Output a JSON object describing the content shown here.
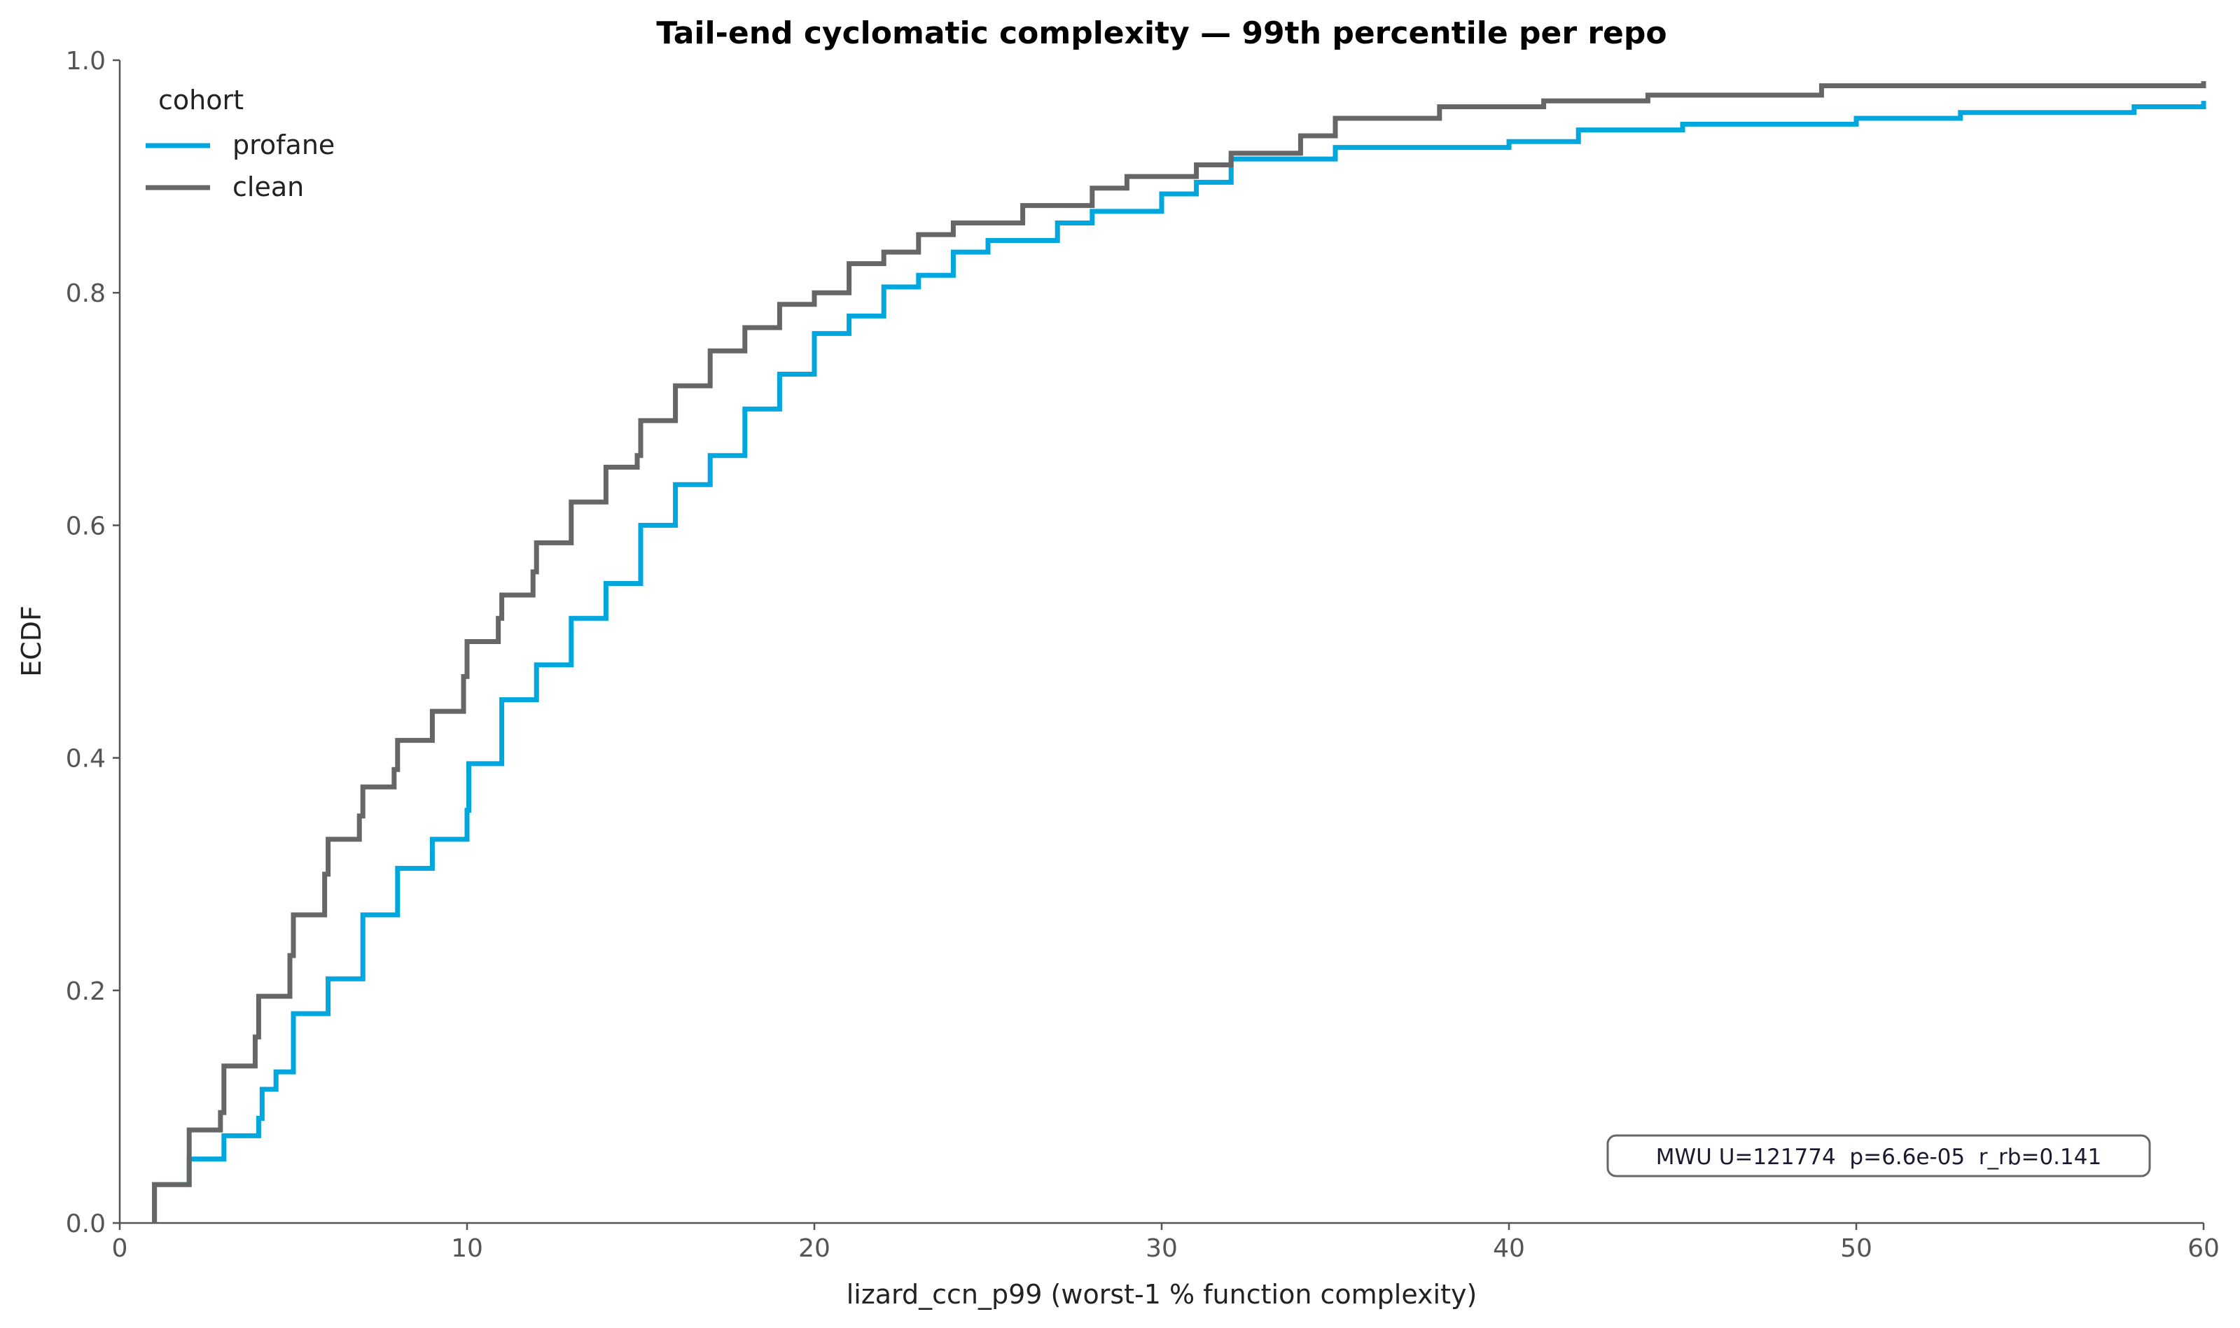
{
  "chart_data": {
    "type": "line",
    "step": "post",
    "title": "Tail-end cyclomatic complexity — 99th percentile per repo",
    "xlabel": "lizard_ccn_p99 (worst-1 % function complexity)",
    "ylabel": "ECDF",
    "xlim": [
      0,
      60
    ],
    "ylim": [
      0,
      1.0
    ],
    "xticks": [
      "0",
      "10",
      "20",
      "30",
      "40",
      "50",
      "60"
    ],
    "yticks": [
      "0.0",
      "0.2",
      "0.4",
      "0.6",
      "0.8",
      "1.0"
    ],
    "grid": false,
    "legend": {
      "title": "cohort",
      "placement": "top-left"
    },
    "annotation": "MWU U=121774  p=6.6e-05  r_rb=0.141",
    "series": [
      {
        "name": "profane",
        "color": "#00a6de",
        "x": [
          1,
          2,
          3,
          4,
          4.1,
          4.5,
          5,
          6,
          7,
          8,
          9,
          10,
          10.05,
          11,
          12,
          13,
          14,
          15,
          16,
          17,
          18,
          19,
          20,
          21,
          22,
          23,
          24,
          25,
          27,
          28,
          30,
          31,
          32,
          35,
          40,
          42,
          45,
          50,
          53,
          58,
          60
        ],
        "y": [
          0.033,
          0.055,
          0.075,
          0.09,
          0.115,
          0.13,
          0.18,
          0.21,
          0.265,
          0.305,
          0.33,
          0.355,
          0.395,
          0.45,
          0.48,
          0.52,
          0.55,
          0.6,
          0.635,
          0.66,
          0.7,
          0.73,
          0.765,
          0.78,
          0.805,
          0.815,
          0.835,
          0.845,
          0.86,
          0.87,
          0.885,
          0.895,
          0.915,
          0.925,
          0.93,
          0.94,
          0.945,
          0.95,
          0.955,
          0.96,
          0.965
        ]
      },
      {
        "name": "clean",
        "color": "#666666",
        "x": [
          1,
          2,
          2.9,
          3,
          3.9,
          4,
          4.9,
          5,
          5.9,
          6,
          6.9,
          7,
          7.9,
          8,
          9,
          9.9,
          10,
          10.9,
          11,
          11.9,
          12,
          13,
          14,
          14.9,
          15,
          16,
          17,
          18,
          19,
          20,
          21,
          22,
          23,
          24,
          26,
          28,
          29,
          31,
          32,
          34,
          35,
          38,
          41,
          44,
          49,
          60
        ],
        "y": [
          0.033,
          0.08,
          0.095,
          0.135,
          0.16,
          0.195,
          0.23,
          0.265,
          0.3,
          0.33,
          0.35,
          0.375,
          0.39,
          0.415,
          0.44,
          0.47,
          0.5,
          0.52,
          0.54,
          0.56,
          0.585,
          0.62,
          0.65,
          0.66,
          0.69,
          0.72,
          0.75,
          0.77,
          0.79,
          0.8,
          0.825,
          0.835,
          0.85,
          0.86,
          0.875,
          0.89,
          0.9,
          0.91,
          0.92,
          0.935,
          0.95,
          0.96,
          0.965,
          0.97,
          0.978,
          0.982
        ]
      }
    ]
  }
}
